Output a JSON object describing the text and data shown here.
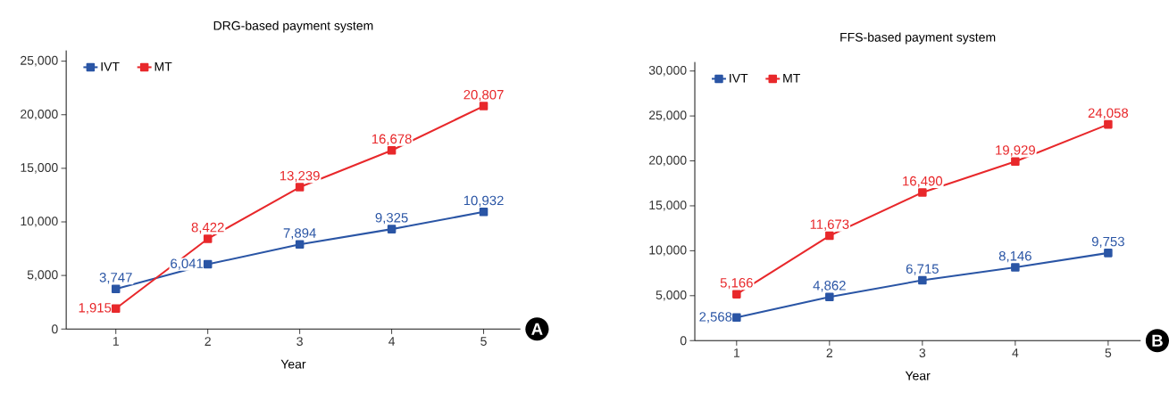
{
  "chart_data": [
    {
      "type": "line",
      "title": "DRG-based payment system",
      "xlabel": "Year",
      "categories": [
        "1",
        "2",
        "3",
        "4",
        "5"
      ],
      "series": [
        {
          "name": "IVT",
          "color": "#2a55a5",
          "values": [
            3747,
            6041,
            7894,
            9325,
            10932
          ],
          "value_labels": [
            "3,747",
            "6,041",
            "7,894",
            "9,325",
            "10,932"
          ]
        },
        {
          "name": "MT",
          "color": "#e8282b",
          "values": [
            1915,
            8422,
            13239,
            16678,
            20807
          ],
          "value_labels": [
            "1,915",
            "8,422",
            "13,239",
            "16,678",
            "20,807"
          ]
        }
      ],
      "ylim": [
        0,
        26000
      ],
      "yticks": [
        0,
        {
          "value": 5000,
          "label": "5,000"
        },
        {
          "value": 10000,
          "label": "10,000"
        },
        {
          "value": 15000,
          "label": "15,000"
        },
        {
          "value": 20000,
          "label": "20,000"
        },
        {
          "value": 25000,
          "label": "25,000"
        }
      ],
      "grid": false,
      "legend": "top left",
      "marker": "square",
      "line_style": "solid",
      "annotations": [
        "A"
      ]
    },
    {
      "type": "line",
      "title": "FFS-based payment system",
      "xlabel": "Year",
      "categories": [
        "1",
        "2",
        "3",
        "4",
        "5"
      ],
      "series": [
        {
          "name": "IVT",
          "color": "#2a55a5",
          "values": [
            2568,
            4862,
            6715,
            8146,
            9753
          ],
          "value_labels": [
            "2,568",
            "4,862",
            "6,715",
            "8,146",
            "9,753"
          ]
        },
        {
          "name": "MT",
          "color": "#e8282b",
          "values": [
            5166,
            11673,
            16490,
            19929,
            24058
          ],
          "value_labels": [
            "5,166",
            "11,673",
            "16,490",
            "19,929",
            "24,058"
          ]
        }
      ],
      "ylim": [
        0,
        31000
      ],
      "yticks": [
        0,
        {
          "value": 5000,
          "label": "5,000"
        },
        {
          "value": 10000,
          "label": "10,000"
        },
        {
          "value": 15000,
          "label": "15,000"
        },
        {
          "value": 20000,
          "label": "20,000"
        },
        {
          "value": 25000,
          "label": "25,000"
        },
        {
          "value": 30000,
          "label": "30,000"
        }
      ],
      "grid": false,
      "legend": "top left",
      "marker": "square",
      "line_style": "solid",
      "annotations": [
        "B"
      ]
    }
  ]
}
